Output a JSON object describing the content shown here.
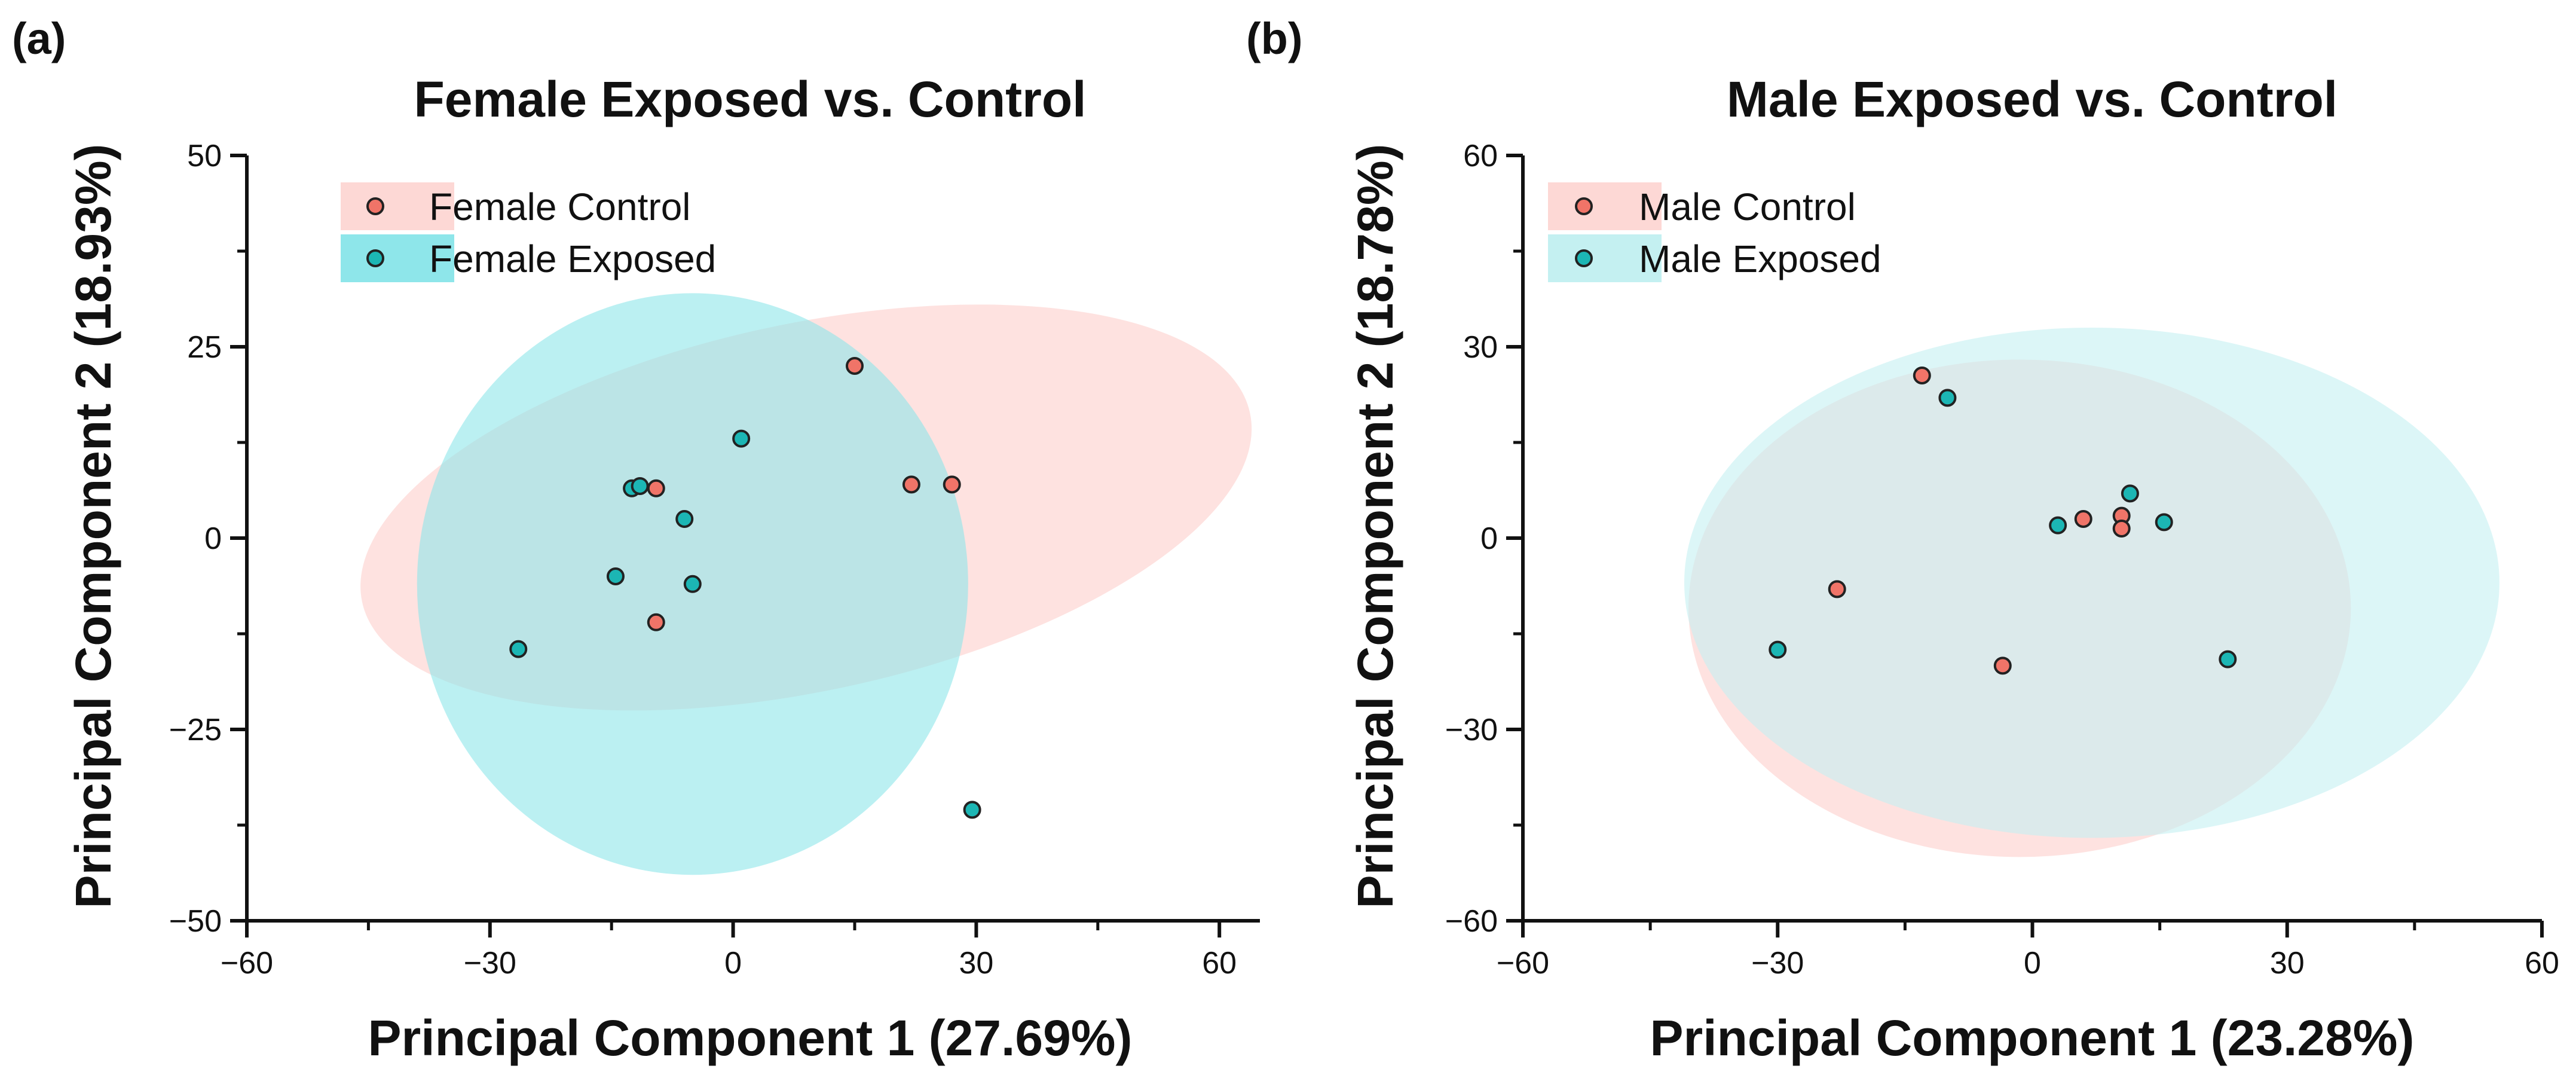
{
  "chart_data": [
    {
      "type": "scatter",
      "panel_label": "(a)",
      "title": "Female Exposed vs. Control",
      "xlabel": "Principal Component 1 (27.69%)",
      "ylabel": "Principal Component 2 (18.93%)",
      "xlim": [
        -60,
        65
      ],
      "ylim": [
        -50,
        50
      ],
      "xticks": [
        -60,
        -30,
        0,
        30,
        60
      ],
      "yticks": [
        -50,
        -25,
        0,
        25,
        50
      ],
      "xtick_labels": [
        "−60",
        "−30",
        "0",
        "30",
        "60"
      ],
      "ytick_labels": [
        "−50",
        "−25",
        "0",
        "25",
        "50"
      ],
      "legend_position": "top-left",
      "series": [
        {
          "name": "Female Control",
          "color": "#f07468",
          "ellipse_color": "#fdd8d5",
          "ellipse": {
            "cx": 9.0,
            "cy": 4.0,
            "rx": 56.0,
            "ry": 24.0,
            "angle": 12
          },
          "points": [
            [
              15,
              22.5
            ],
            [
              27,
              7
            ],
            [
              22,
              7
            ],
            [
              -9.5,
              6.5
            ],
            [
              -9.5,
              -11
            ]
          ]
        },
        {
          "name": "Female Exposed",
          "color": "#1cb6b4",
          "ellipse_color": "#8ee6ea",
          "ellipse": {
            "cx": -5.0,
            "cy": -6.0,
            "rx": 34.0,
            "ry": 38.0,
            "angle": 0
          },
          "points": [
            [
              1,
              13
            ],
            [
              -12.5,
              6.5
            ],
            [
              -11.5,
              6.8
            ],
            [
              -6,
              2.5
            ],
            [
              -14.5,
              -5
            ],
            [
              -5,
              -6
            ],
            [
              -26.5,
              -14.5
            ],
            [
              29.5,
              -35.5
            ]
          ]
        }
      ]
    },
    {
      "type": "scatter",
      "panel_label": "(b)",
      "title": "Male Exposed vs. Control",
      "xlabel": "Principal Component 1 (23.28%)",
      "ylabel": "Principal Component 2 (18.78%)",
      "xlim": [
        -60,
        60
      ],
      "ylim": [
        -60,
        60
      ],
      "xticks": [
        -60,
        -30,
        0,
        30,
        60
      ],
      "yticks": [
        -60,
        -30,
        0,
        30,
        60
      ],
      "xtick_labels": [
        "−60",
        "−30",
        "0",
        "30",
        "60"
      ],
      "ytick_labels": [
        "−60",
        "−30",
        "0",
        "30",
        "60"
      ],
      "legend_position": "top-left",
      "series": [
        {
          "name": "Male Control",
          "color": "#f07468",
          "ellipse_color": "#fdd8d5",
          "ellipse": {
            "cx": -1.5,
            "cy": -11.0,
            "rx": 39.0,
            "ry": 39.0,
            "angle": 0
          },
          "points": [
            [
              -13,
              25.5
            ],
            [
              6,
              3
            ],
            [
              10.5,
              3.5
            ],
            [
              10.5,
              1.5
            ],
            [
              -23,
              -8
            ],
            [
              -3.5,
              -20
            ]
          ]
        },
        {
          "name": "Male Exposed",
          "color": "#1cb6b4",
          "ellipse_color": "#c4f0f1",
          "ellipse": {
            "cx": 7.0,
            "cy": -7.0,
            "rx": 48.0,
            "ry": 40.0,
            "angle": 0
          },
          "points": [
            [
              -10,
              22
            ],
            [
              11.5,
              7
            ],
            [
              3,
              2
            ],
            [
              15.5,
              2.5
            ],
            [
              -30,
              -17.5
            ],
            [
              23,
              -19
            ]
          ]
        }
      ]
    }
  ]
}
